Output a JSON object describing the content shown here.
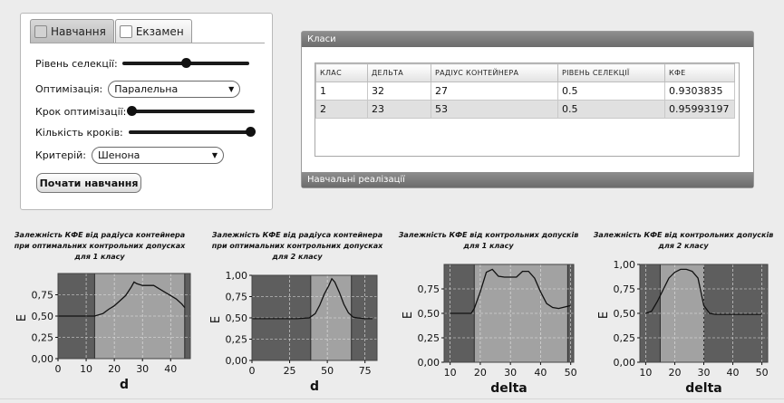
{
  "tabs": [
    {
      "label": "Навчання",
      "active": true
    },
    {
      "label": "Екзамен",
      "active": false
    }
  ],
  "form": {
    "selection_label": "Рівень селекції:",
    "selection_level": 0.5,
    "optimization_label": "Оптимізація:",
    "optimization_value": "Паралельна",
    "step_label": "Крок оптимізації:",
    "step_level": 0.0,
    "steps_count_label": "Кількість кроків:",
    "steps_count_level": 1.0,
    "criterion_label": "Критерій:",
    "criterion_value": "Шенона",
    "start_button": "Почати навчання"
  },
  "classes_panel": {
    "title": "Класи",
    "footer": "Навчальні реалізації",
    "columns": [
      "КЛАС",
      "ДЕЛЬТА",
      "РАДІУС КОНТЕЙНЕРА",
      "РІВЕНЬ СЕЛЕКЦІЇ",
      "КФЕ"
    ],
    "rows": [
      [
        "1",
        "32",
        "27",
        "0.5",
        "0.9303835"
      ],
      [
        "2",
        "23",
        "53",
        "0.5",
        "0.95993197"
      ]
    ]
  },
  "chart_data": [
    {
      "type": "line",
      "title_lines": [
        "Залежність КФЕ від радіуса контейнера",
        "при оптимальних контрольних допусках",
        "для 1 класу"
      ],
      "xlabel": "d",
      "ylabel": "E",
      "xlim": [
        0,
        47
      ],
      "ylim": [
        0,
        1.0
      ],
      "xticks": [
        "0",
        "10",
        "20",
        "30",
        "40"
      ],
      "xtick_values": [
        0,
        10,
        20,
        30,
        40
      ],
      "yticks": [
        "0,00",
        "0,25",
        "0,50",
        "0,75"
      ],
      "ytick_values": [
        0,
        0.25,
        0.5,
        0.75
      ],
      "shaded_region": [
        13,
        45
      ],
      "series": [
        {
          "x": [
            0,
            10,
            13,
            16,
            18,
            20,
            22,
            24,
            26,
            27,
            28,
            30,
            32,
            34,
            36,
            38,
            40,
            42,
            44,
            45
          ],
          "y": [
            0.5,
            0.5,
            0.5,
            0.53,
            0.58,
            0.62,
            0.68,
            0.74,
            0.84,
            0.9,
            0.88,
            0.86,
            0.86,
            0.86,
            0.82,
            0.78,
            0.74,
            0.7,
            0.64,
            0.6
          ]
        }
      ]
    },
    {
      "type": "line",
      "title_lines": [
        "Залежність КФЕ від радіуса контейнера",
        "при оптимальних контрольних допусках",
        "для 2 класу"
      ],
      "xlabel": "d",
      "ylabel": "E",
      "xlim": [
        0,
        83
      ],
      "ylim": [
        0,
        1.0
      ],
      "xticks": [
        "0",
        "25",
        "50",
        "75"
      ],
      "xtick_values": [
        0,
        25,
        50,
        75
      ],
      "yticks": [
        "0,00",
        "0,25",
        "0,50",
        "0,75",
        "1,00"
      ],
      "ytick_values": [
        0,
        0.25,
        0.5,
        0.75,
        1.0
      ],
      "shaded_region": [
        39,
        66
      ],
      "series": [
        {
          "x": [
            0,
            30,
            38,
            42,
            45,
            48,
            51,
            53,
            55,
            58,
            61,
            64,
            67,
            70,
            75,
            80
          ],
          "y": [
            0.49,
            0.49,
            0.5,
            0.55,
            0.65,
            0.78,
            0.88,
            0.96,
            0.92,
            0.8,
            0.66,
            0.56,
            0.51,
            0.5,
            0.49,
            0.49
          ]
        }
      ]
    },
    {
      "type": "line",
      "title_lines": [
        "Залежність КФЕ від контрольних допусків",
        "для 1 класу"
      ],
      "xlabel": "delta",
      "ylabel": "E",
      "xlim": [
        8,
        51
      ],
      "ylim": [
        0,
        1.0
      ],
      "xticks": [
        "10",
        "20",
        "30",
        "40",
        "50"
      ],
      "xtick_values": [
        10,
        20,
        30,
        40,
        50
      ],
      "yticks": [
        "0,00",
        "0,25",
        "0,50",
        "0,75"
      ],
      "ytick_values": [
        0,
        0.25,
        0.5,
        0.75
      ],
      "shaded_region": [
        18,
        49
      ],
      "series": [
        {
          "x": [
            10,
            14,
            17,
            18,
            20,
            22,
            24,
            26,
            28,
            30,
            32,
            34,
            36,
            38,
            40,
            42,
            44,
            46,
            50
          ],
          "y": [
            0.5,
            0.5,
            0.5,
            0.55,
            0.72,
            0.92,
            0.95,
            0.88,
            0.87,
            0.87,
            0.87,
            0.93,
            0.93,
            0.86,
            0.72,
            0.6,
            0.56,
            0.55,
            0.58
          ]
        }
      ]
    },
    {
      "type": "line",
      "title_lines": [
        "Залежність КФЕ від контрольних допусків",
        "для 2 класу"
      ],
      "xlabel": "delta",
      "ylabel": "E",
      "xlim": [
        8,
        52
      ],
      "ylim": [
        0,
        1.0
      ],
      "xticks": [
        "10",
        "20",
        "30",
        "40",
        "50"
      ],
      "xtick_values": [
        10,
        20,
        30,
        40,
        50
      ],
      "yticks": [
        "0,00",
        "0,25",
        "0,50",
        "0,75",
        "1,00"
      ],
      "ytick_values": [
        0,
        0.25,
        0.5,
        0.75,
        1.0
      ],
      "shaded_region": [
        15,
        30
      ],
      "series": [
        {
          "x": [
            10,
            12,
            14,
            16,
            18,
            20,
            22,
            24,
            26,
            28,
            30,
            32,
            34,
            36,
            40,
            45,
            50
          ],
          "y": [
            0.5,
            0.52,
            0.62,
            0.74,
            0.86,
            0.92,
            0.95,
            0.95,
            0.93,
            0.86,
            0.58,
            0.5,
            0.49,
            0.49,
            0.49,
            0.49,
            0.49
          ]
        }
      ]
    }
  ]
}
